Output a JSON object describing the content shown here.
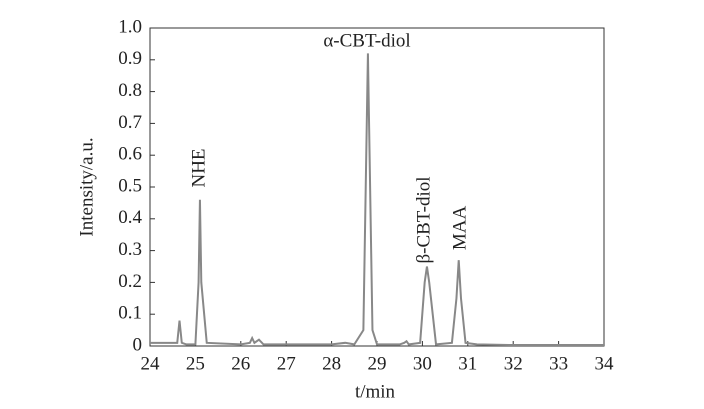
{
  "chart_data": {
    "type": "line",
    "xlabel": "t/min",
    "ylabel": "Intensity/a.u.",
    "annotations": [
      "NHE",
      "α-CBT-diol",
      "β-CBT-diol",
      "MAA"
    ],
    "color": "#888888",
    "x": [
      24,
      24.3,
      24.6,
      24.65,
      24.7,
      24.8,
      25.0,
      25.07,
      25.1,
      25.13,
      25.25,
      26.0,
      26.2,
      26.25,
      26.3,
      26.4,
      26.5,
      27.0,
      28.0,
      28.3,
      28.5,
      28.7,
      28.8,
      28.9,
      29.0,
      29.5,
      29.6,
      29.65,
      29.7,
      29.95,
      30.05,
      30.1,
      30.15,
      30.3,
      30.65,
      30.75,
      30.8,
      30.85,
      30.95,
      31.2,
      32,
      34
    ],
    "values": [
      0.01,
      0.01,
      0.01,
      0.08,
      0.01,
      0.005,
      0.005,
      0.2,
      0.46,
      0.2,
      0.01,
      0.005,
      0.01,
      0.025,
      0.01,
      0.02,
      0.005,
      0.005,
      0.005,
      0.01,
      0.005,
      0.05,
      0.92,
      0.05,
      0.005,
      0.005,
      0.01,
      0.015,
      0.005,
      0.01,
      0.2,
      0.25,
      0.2,
      0.005,
      0.01,
      0.15,
      0.27,
      0.15,
      0.01,
      0.005,
      0.003,
      0.003
    ],
    "xlim": [
      24,
      34
    ],
    "xticks": [
      24,
      25,
      26,
      27,
      28,
      29,
      30,
      31,
      32,
      33,
      34
    ],
    "ylim": [
      0,
      1
    ],
    "yticks": [
      0,
      0.1,
      0.2,
      0.3,
      0.4,
      0.5,
      0.6,
      0.7,
      0.8,
      0.9,
      {
        "value": 1,
        "label": "1.0"
      }
    ]
  }
}
